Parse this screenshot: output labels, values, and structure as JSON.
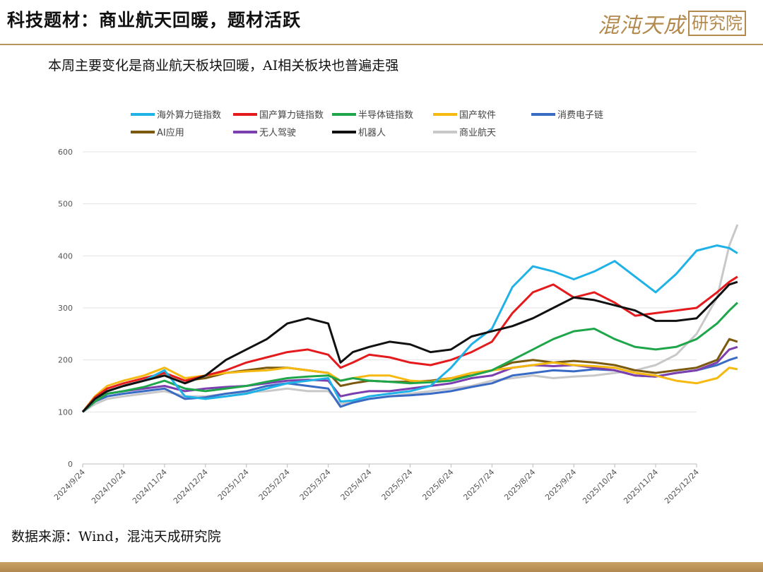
{
  "header": {
    "title": "科技题材：商业航天回暖，题材活跃"
  },
  "logo": {
    "main": "混沌天成",
    "boxed": "研究院"
  },
  "subtitle": "本周主要变化是商业航天板块回暖，AI相关板块也普遍走强",
  "footer": {
    "source": "数据来源：Wind，混沌天成研究院"
  },
  "chart_data": {
    "type": "line",
    "title": "",
    "xlabel": "",
    "ylabel": "",
    "ylim": [
      0,
      600
    ],
    "yticks": [
      0,
      100,
      200,
      300,
      400,
      500,
      600
    ],
    "xticks": [
      "2024/9/24",
      "2024/10/24",
      "2024/11/24",
      "2024/12/24",
      "2025/1/24",
      "2025/2/24",
      "2025/3/24",
      "2025/4/24",
      "2025/5/24",
      "2025/6/24",
      "2025/7/24",
      "2025/8/24",
      "2025/9/24",
      "2025/10/24",
      "2025/11/24",
      "2025/12/24"
    ],
    "grid": "horizontal",
    "legend_position": "top",
    "x": [
      0,
      0.3,
      0.6,
      1,
      1.5,
      2,
      2.5,
      3,
      3.5,
      4,
      4.5,
      5,
      5.5,
      6,
      6.3,
      6.6,
      7,
      7.5,
      8,
      8.5,
      9,
      9.5,
      10,
      10.5,
      11,
      11.5,
      12,
      12.5,
      13,
      13.5,
      14,
      14.5,
      15,
      15.5,
      15.8,
      16
    ],
    "series": [
      {
        "name": "海外算力链指数",
        "color": "#1fb2e6",
        "values": [
          100,
          125,
          140,
          150,
          160,
          180,
          130,
          125,
          130,
          135,
          145,
          155,
          160,
          165,
          120,
          122,
          130,
          135,
          140,
          150,
          185,
          230,
          260,
          340,
          380,
          370,
          355,
          370,
          390,
          360,
          330,
          365,
          410,
          420,
          415,
          405
        ]
      },
      {
        "name": "国产算力链指数",
        "color": "#e41a1c",
        "values": [
          100,
          128,
          145,
          155,
          165,
          175,
          160,
          170,
          180,
          195,
          205,
          215,
          220,
          210,
          185,
          195,
          210,
          205,
          195,
          190,
          200,
          215,
          235,
          290,
          330,
          345,
          320,
          330,
          310,
          285,
          290,
          295,
          300,
          330,
          350,
          360
        ]
      },
      {
        "name": "半导体链指数",
        "color": "#1fa64a",
        "values": [
          100,
          120,
          135,
          140,
          148,
          160,
          145,
          140,
          145,
          150,
          158,
          165,
          168,
          170,
          160,
          165,
          160,
          158,
          155,
          157,
          160,
          170,
          180,
          200,
          220,
          240,
          255,
          260,
          240,
          225,
          220,
          225,
          240,
          270,
          295,
          310
        ]
      },
      {
        "name": "国产软件",
        "color": "#f5b911",
        "values": [
          100,
          130,
          150,
          160,
          170,
          185,
          165,
          170,
          175,
          178,
          180,
          185,
          180,
          175,
          160,
          165,
          170,
          170,
          160,
          158,
          165,
          175,
          180,
          185,
          190,
          195,
          190,
          188,
          185,
          175,
          170,
          160,
          155,
          165,
          185,
          182
        ]
      },
      {
        "name": "消费电子链",
        "color": "#3a6bc4",
        "values": [
          100,
          120,
          130,
          135,
          140,
          145,
          125,
          128,
          135,
          140,
          150,
          155,
          150,
          145,
          110,
          118,
          125,
          130,
          132,
          135,
          140,
          148,
          155,
          170,
          175,
          180,
          178,
          182,
          180,
          170,
          168,
          175,
          180,
          190,
          200,
          205
        ]
      },
      {
        "name": "AI应用",
        "color": "#7b5a0f",
        "values": [
          100,
          125,
          140,
          150,
          160,
          175,
          160,
          165,
          175,
          180,
          185,
          185,
          180,
          175,
          150,
          155,
          160,
          158,
          158,
          160,
          165,
          170,
          180,
          195,
          200,
          195,
          198,
          195,
          190,
          180,
          175,
          180,
          185,
          200,
          240,
          235
        ]
      },
      {
        "name": "无人驾驶",
        "color": "#7b3fb0",
        "values": [
          100,
          120,
          135,
          140,
          145,
          150,
          140,
          145,
          148,
          150,
          155,
          160,
          162,
          160,
          130,
          135,
          140,
          140,
          145,
          150,
          155,
          165,
          170,
          185,
          190,
          188,
          190,
          185,
          180,
          170,
          168,
          175,
          180,
          195,
          220,
          225
        ]
      },
      {
        "name": "机器人",
        "color": "#111111",
        "values": [
          100,
          125,
          140,
          150,
          160,
          170,
          155,
          170,
          200,
          220,
          240,
          270,
          280,
          270,
          195,
          215,
          225,
          235,
          230,
          215,
          220,
          245,
          255,
          265,
          280,
          300,
          320,
          315,
          305,
          295,
          275,
          275,
          280,
          320,
          345,
          350
        ]
      },
      {
        "name": "商业航天",
        "color": "#c8c8c8",
        "values": [
          100,
          115,
          125,
          130,
          135,
          140,
          130,
          130,
          135,
          138,
          140,
          145,
          140,
          140,
          115,
          120,
          125,
          130,
          135,
          140,
          145,
          150,
          160,
          165,
          170,
          165,
          168,
          170,
          175,
          180,
          190,
          210,
          250,
          320,
          420,
          460
        ]
      }
    ]
  }
}
